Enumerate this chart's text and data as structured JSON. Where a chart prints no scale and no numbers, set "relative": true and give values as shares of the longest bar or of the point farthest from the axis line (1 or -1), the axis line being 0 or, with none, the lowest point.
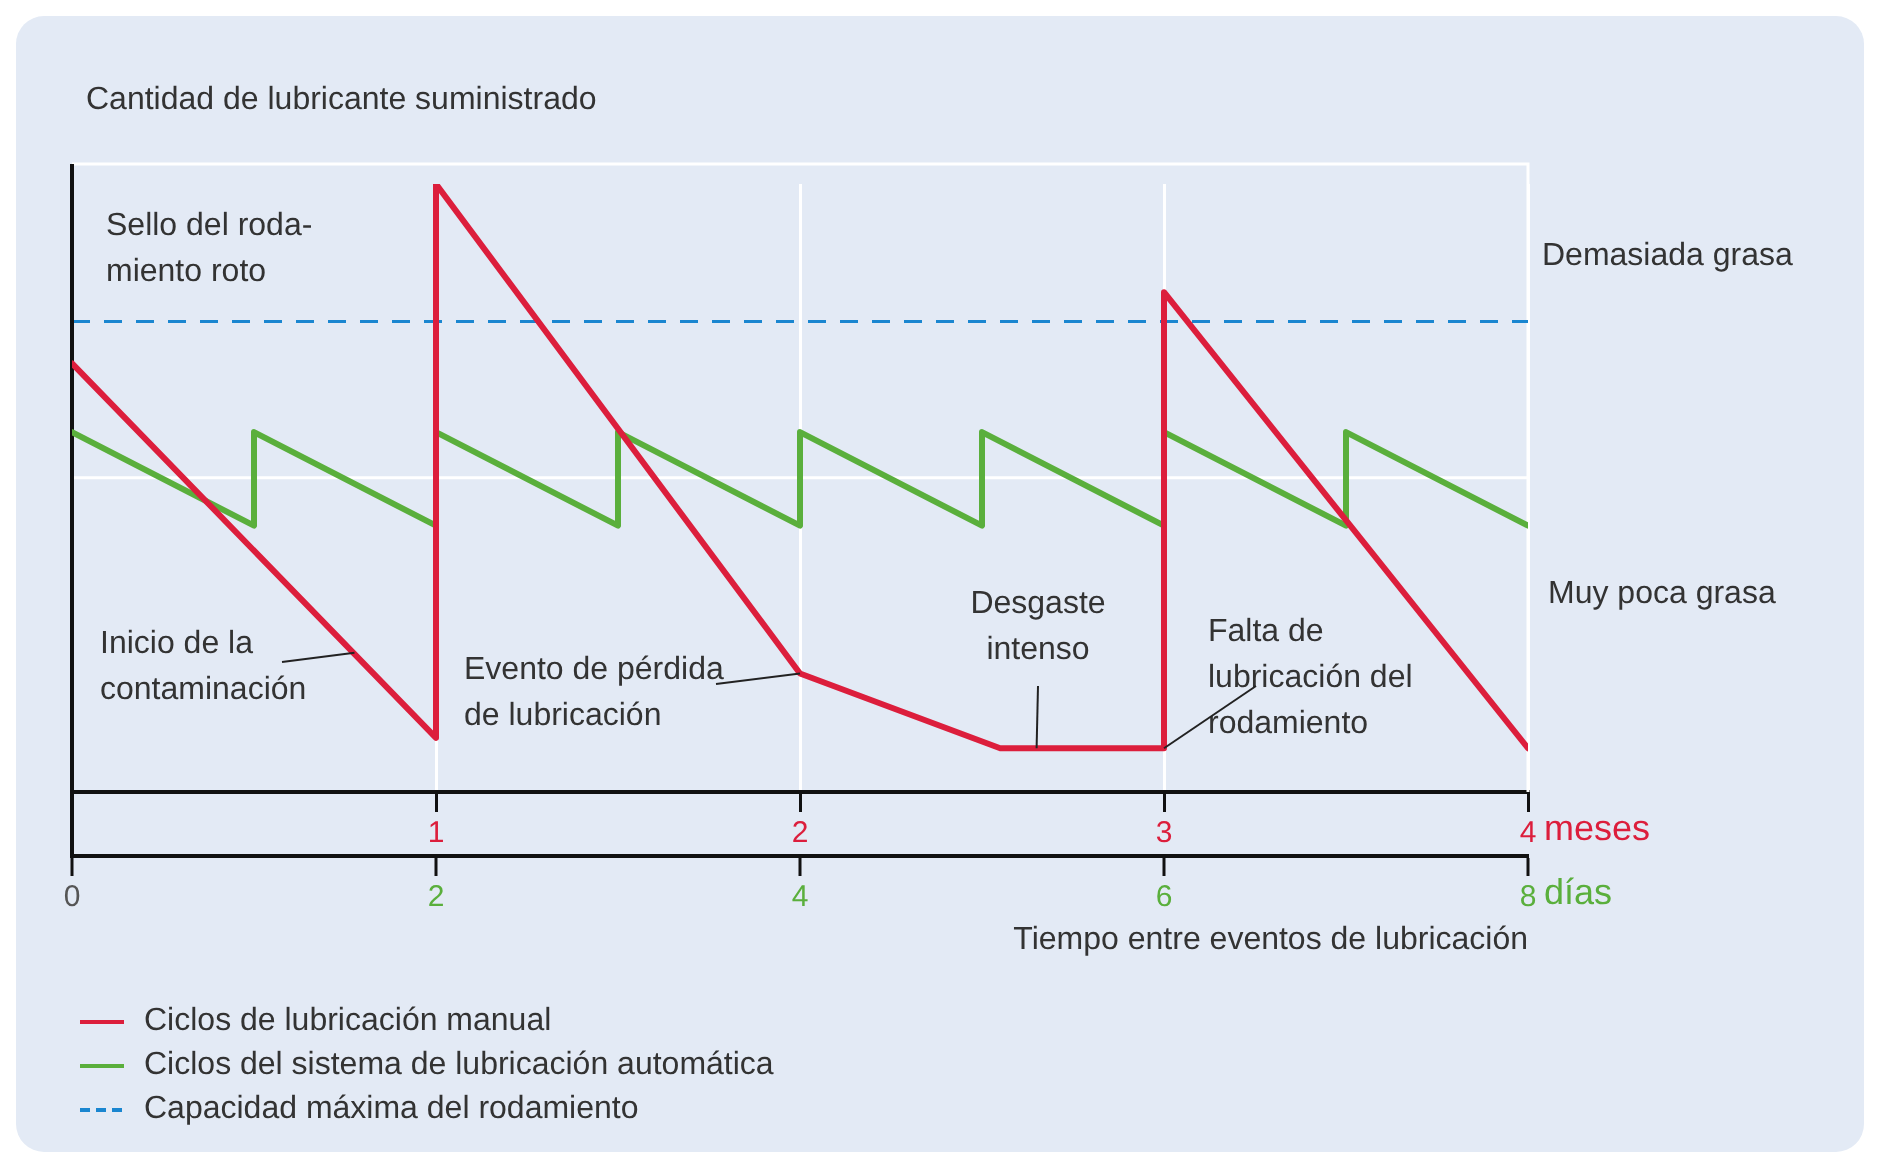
{
  "chart_data": {
    "type": "line",
    "relative": true,
    "ylabel": "Cantidad de lubricante suministrado",
    "xlabel": "meses",
    "x2label": "días",
    "xlim": [
      0,
      4
    ],
    "xticks": [
      {
        "value": 0,
        "label": null
      },
      1,
      2,
      3,
      4
    ],
    "x2lim": [
      0,
      8
    ],
    "x2ticks": [
      0,
      2,
      4,
      6,
      8
    ],
    "series": [
      {
        "name": "Ciclos de lubricación manual",
        "color": "#dc1e3c",
        "x": [
          0,
          1,
          1,
          2,
          2.55,
          3,
          3,
          4
        ],
        "values": [
          0.705,
          0.089,
          1,
          0.195,
          0.072,
          0.072,
          0.822,
          0.072
        ]
      },
      {
        "name": "Ciclos del sistema de lubricación automática",
        "color": "#5aaf3c",
        "x": [
          0,
          0.5,
          0.5,
          1,
          1,
          1.5,
          1.5,
          2,
          2,
          2.5,
          2.5,
          3,
          3,
          3.5,
          3.5,
          4
        ],
        "values": [
          0.592,
          0.438,
          0.592,
          0.438,
          0.592,
          0.438,
          0.592,
          0.438,
          0.592,
          0.438,
          0.592,
          0.438,
          0.592,
          0.438,
          0.592,
          0.438
        ]
      }
    ],
    "ref_lines": [
      {
        "axis": "y",
        "value": 0.774,
        "label": "Capacidad máxima del rodamiento",
        "color": "#1a86d0",
        "line_style": "dashed"
      },
      {
        "axis": "y",
        "value": 0.517,
        "color": "#ffffff"
      }
    ],
    "annotations": [
      "Sello del roda-\nmiento roto",
      {
        "text": "Inicio de la\ncontaminación",
        "x": 0.776,
        "y": 0.229
      },
      {
        "text": "Evento de pérdida\nde lubricación",
        "x": 2,
        "y": 0.195
      },
      {
        "text": "Desgaste\nintenso",
        "x": 2.65,
        "y": 0.072
      },
      {
        "text": "Falta de\nlubricación del\nrodamiento",
        "x": 3,
        "y": 0.072
      },
      "Demasiada grasa",
      "Muy poca grasa",
      "Tiempo entre eventos de lubricación"
    ],
    "grid": "x",
    "legend": "bottom left",
    "marker": "none",
    "line_style": "solid"
  }
}
